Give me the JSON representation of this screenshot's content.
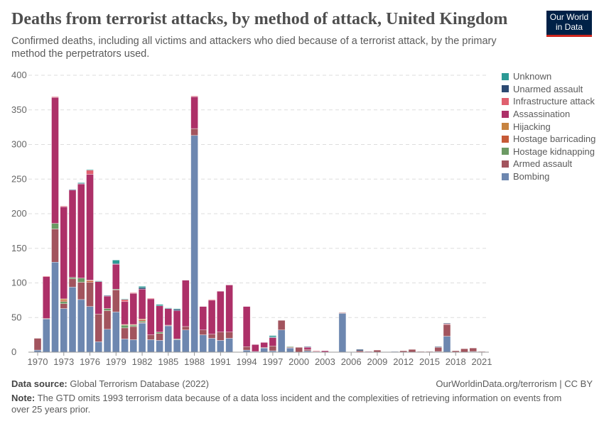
{
  "header": {
    "title": "Deaths from terrorist attacks, by method of attack, United Kingdom",
    "subtitle": "Confirmed deaths, including all victims and attackers who died because of a terrorist attack, by the primary method the perpetrators used.",
    "logo": "Our World in Data"
  },
  "footer": {
    "source_label": "Data source:",
    "source": "Global Terrorism Database (2022)",
    "url": "OurWorldinData.org/terrorism | CC BY",
    "note_label": "Note:",
    "note": "The GTD omits 1993 terrorism data because of a data loss incident and the complexities of retrieving information on events from over 25 years prior."
  },
  "chart_data": {
    "type": "bar",
    "stacked": true,
    "ylim": [
      0,
      400
    ],
    "yticks": [
      0,
      50,
      100,
      150,
      200,
      250,
      300,
      350,
      400
    ],
    "xticks": [
      "1970",
      "1973",
      "1976",
      "1979",
      "1982",
      "1985",
      "1988",
      "1991",
      "1994",
      "1997",
      "2000",
      "2003",
      "2006",
      "2009",
      "2012",
      "2015",
      "2018",
      "2021"
    ],
    "grid": true,
    "legend_placement": "right",
    "categories": [
      1970,
      1971,
      1972,
      1973,
      1974,
      1975,
      1976,
      1977,
      1978,
      1979,
      1980,
      1981,
      1982,
      1983,
      1984,
      1985,
      1986,
      1987,
      1988,
      1989,
      1990,
      1991,
      1992,
      1994,
      1995,
      1996,
      1997,
      1998,
      1999,
      2000,
      2001,
      2002,
      2003,
      2004,
      2005,
      2006,
      2007,
      2008,
      2009,
      2010,
      2011,
      2012,
      2013,
      2014,
      2015,
      2016,
      2017,
      2018,
      2019,
      2020,
      2021
    ],
    "series": [
      {
        "name": "Bombing",
        "color": "#6d87b0",
        "values": [
          3,
          48,
          130,
          63,
          94,
          76,
          66,
          15,
          33,
          58,
          19,
          18,
          42,
          18,
          17,
          38,
          18,
          32,
          313,
          25,
          20,
          17,
          20,
          3,
          1,
          6,
          2,
          32,
          6,
          0,
          2,
          1,
          0,
          0,
          56,
          0,
          0,
          0,
          0,
          0,
          1,
          0,
          0,
          0,
          0,
          1,
          23,
          0,
          0,
          1,
          0
        ]
      },
      {
        "name": "Armed assault",
        "color": "#a2545e",
        "values": [
          17,
          1,
          48,
          7,
          12,
          25,
          35,
          40,
          27,
          32,
          16,
          19,
          1,
          7,
          10,
          1,
          0,
          5,
          10,
          7,
          6,
          12,
          9,
          5,
          0,
          1,
          7,
          14,
          1,
          7,
          2,
          0,
          0,
          0,
          1,
          0,
          2,
          0,
          3,
          0,
          0,
          2,
          4,
          1,
          1,
          6,
          17,
          2,
          5,
          5,
          1
        ]
      },
      {
        "name": "Hostage kidnapping",
        "color": "#6c9a64",
        "values": [
          0,
          0,
          8,
          3,
          2,
          6,
          0,
          0,
          3,
          1,
          4,
          2,
          2,
          0,
          2,
          0,
          1,
          0,
          0,
          0,
          0,
          0,
          0,
          0,
          0,
          0,
          0,
          0,
          1,
          0,
          0,
          0,
          0,
          0,
          0,
          0,
          0,
          0,
          0,
          0,
          0,
          0,
          0,
          0,
          0,
          0,
          0,
          0,
          0,
          0,
          0
        ]
      },
      {
        "name": "Hostage barricading",
        "color": "#c65a37",
        "values": [
          0,
          0,
          0,
          2,
          0,
          0,
          2,
          0,
          0,
          0,
          0,
          0,
          2,
          0,
          0,
          0,
          0,
          0,
          0,
          0,
          0,
          0,
          0,
          0,
          0,
          0,
          0,
          0,
          0,
          0,
          0,
          0,
          0,
          0,
          0,
          0,
          0,
          0,
          0,
          0,
          0,
          0,
          0,
          0,
          0,
          0,
          0,
          0,
          0,
          0,
          0
        ]
      },
      {
        "name": "Hijacking",
        "color": "#c7833f",
        "values": [
          0,
          0,
          0,
          2,
          0,
          0,
          1,
          0,
          0,
          0,
          1,
          1,
          1,
          0,
          0,
          0,
          0,
          0,
          0,
          0,
          0,
          0,
          0,
          0,
          0,
          0,
          0,
          0,
          0,
          0,
          0,
          0,
          0,
          0,
          0,
          0,
          0,
          0,
          0,
          0,
          0,
          0,
          0,
          0,
          0,
          0,
          0,
          0,
          0,
          0,
          0
        ]
      },
      {
        "name": "Assassination",
        "color": "#ad3068",
        "values": [
          0,
          60,
          182,
          133,
          126,
          136,
          153,
          47,
          18,
          36,
          33,
          45,
          43,
          52,
          38,
          24,
          41,
          67,
          46,
          34,
          49,
          59,
          68,
          58,
          10,
          7,
          12,
          0,
          0,
          0,
          3,
          0,
          2,
          0,
          0,
          0,
          0,
          1,
          0,
          0,
          0,
          0,
          0,
          0,
          0,
          0,
          0,
          0,
          0,
          0,
          0
        ]
      },
      {
        "name": "Infrastructure attack",
        "color": "#e0606f",
        "values": [
          0,
          1,
          1,
          1,
          0,
          0,
          6,
          0,
          0,
          0,
          3,
          1,
          0,
          1,
          0,
          0,
          0,
          0,
          1,
          0,
          1,
          0,
          0,
          0,
          0,
          0,
          0,
          0,
          0,
          0,
          0,
          1,
          0,
          0,
          0,
          0,
          0,
          0,
          0,
          0,
          0,
          0,
          0,
          0,
          0,
          0,
          1,
          0,
          0,
          0,
          0
        ]
      },
      {
        "name": "Unarmed assault",
        "color": "#2d4a72",
        "values": [
          0,
          0,
          0,
          0,
          1,
          1,
          0,
          0,
          1,
          1,
          0,
          0,
          2,
          0,
          0,
          0,
          2,
          0,
          0,
          0,
          0,
          0,
          0,
          0,
          0,
          0,
          1,
          0,
          0,
          0,
          1,
          0,
          0,
          0,
          0,
          0,
          2,
          0,
          0,
          0,
          0,
          0,
          0,
          0,
          0,
          1,
          1,
          0,
          0,
          0,
          0
        ]
      },
      {
        "name": "Unknown",
        "color": "#2c9a95",
        "values": [
          0,
          0,
          0,
          0,
          0,
          1,
          1,
          1,
          0,
          5,
          1,
          0,
          2,
          0,
          2,
          1,
          1,
          0,
          0,
          0,
          0,
          0,
          0,
          0,
          0,
          0,
          2,
          0,
          0,
          0,
          0,
          0,
          0,
          0,
          0,
          0,
          0,
          0,
          0,
          0,
          0,
          0,
          0,
          0,
          0,
          0,
          0,
          0,
          0,
          0,
          0
        ]
      }
    ]
  }
}
